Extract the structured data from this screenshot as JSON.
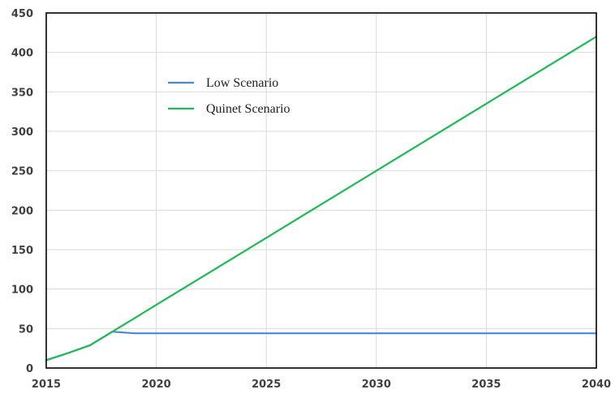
{
  "chart_data": {
    "type": "line",
    "title": "",
    "xlabel": "",
    "ylabel": "",
    "xlim": [
      2015,
      2040
    ],
    "ylim": [
      0,
      450
    ],
    "x_ticks": [
      2015,
      2020,
      2025,
      2030,
      2035,
      2040
    ],
    "y_ticks": [
      0,
      50,
      100,
      150,
      200,
      250,
      300,
      350,
      400,
      450
    ],
    "grid": true,
    "legend_position": "upper-left-inside",
    "series": [
      {
        "name": "Low Scenario",
        "color": "#4a86d4",
        "points": [
          [
            2015,
            10
          ],
          [
            2016,
            19
          ],
          [
            2017,
            29
          ],
          [
            2018,
            46
          ],
          [
            2018.5,
            45
          ],
          [
            2019,
            44
          ],
          [
            2020,
            44
          ],
          [
            2025,
            44
          ],
          [
            2030,
            44
          ],
          [
            2035,
            44
          ],
          [
            2040,
            44
          ]
        ]
      },
      {
        "name": "Quinet Scenario",
        "color": "#1fba55",
        "points": [
          [
            2015,
            10
          ],
          [
            2016,
            19
          ],
          [
            2017,
            29
          ],
          [
            2018,
            46
          ],
          [
            2019,
            63
          ],
          [
            2020,
            80
          ],
          [
            2025,
            165
          ],
          [
            2030,
            250
          ],
          [
            2035,
            335
          ],
          [
            2040,
            420
          ]
        ]
      }
    ]
  }
}
